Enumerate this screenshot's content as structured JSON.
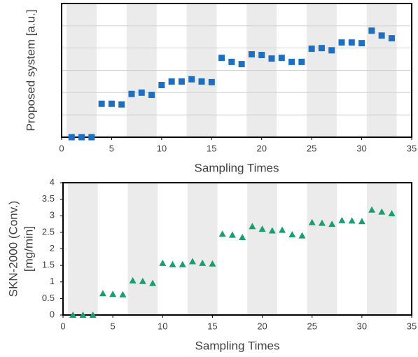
{
  "chart_data": [
    {
      "type": "scatter",
      "ylabel": "Proposed system [a.u.]",
      "xlabel": "Sampling Times",
      "x": [
        1,
        2,
        3,
        4,
        5,
        6,
        7,
        8,
        9,
        10,
        11,
        12,
        13,
        14,
        15,
        16,
        17,
        18,
        19,
        20,
        21,
        22,
        23,
        24,
        25,
        26,
        27,
        28,
        29,
        30,
        31,
        32,
        33
      ],
      "series": [
        {
          "color": "#1f6fc0",
          "marker": "square",
          "values": [
            0,
            0,
            0,
            1.5,
            1.5,
            1.47,
            1.94,
            2,
            1.9,
            2.34,
            2.5,
            2.5,
            2.6,
            2.5,
            2.47,
            3.56,
            3.38,
            3.28,
            3.72,
            3.69,
            3.53,
            3.56,
            3.38,
            3.38,
            3.97,
            4,
            3.9,
            4.25,
            4.25,
            4.22,
            4.78,
            4.56,
            4.44
          ]
        }
      ],
      "xlim": [
        0,
        35
      ],
      "xticks": [
        0,
        5,
        10,
        15,
        20,
        25,
        30,
        35
      ],
      "ylim": [
        0,
        6
      ],
      "grid_lines": [
        1,
        2,
        3,
        4,
        5
      ],
      "shaded_ranges": [
        [
          0.5,
          3.5
        ],
        [
          6.5,
          9.5
        ],
        [
          12.5,
          15.5
        ],
        [
          18.5,
          21.5
        ],
        [
          24.5,
          27.5
        ],
        [
          30.5,
          33.5
        ]
      ]
    },
    {
      "type": "scatter",
      "ylabel": [
        "SKN-2000 (Conv.)",
        "[mg/min]"
      ],
      "xlabel": "Sampling Times",
      "x": [
        1,
        2,
        3,
        4,
        5,
        6,
        7,
        8,
        9,
        10,
        11,
        12,
        13,
        14,
        15,
        16,
        17,
        18,
        19,
        20,
        21,
        22,
        23,
        24,
        25,
        26,
        27,
        28,
        29,
        30,
        31,
        32,
        33
      ],
      "series": [
        {
          "color": "#1a9e6e",
          "marker": "triangle",
          "values": [
            0,
            0,
            0,
            0.65,
            0.63,
            0.62,
            1.04,
            1.02,
            0.96,
            1.57,
            1.53,
            1.53,
            1.62,
            1.57,
            1.55,
            2.45,
            2.42,
            2.35,
            2.68,
            2.6,
            2.55,
            2.57,
            2.43,
            2.4,
            2.8,
            2.78,
            2.75,
            2.86,
            2.85,
            2.83,
            3.18,
            3.12,
            3.07
          ]
        }
      ],
      "xlim": [
        0,
        35
      ],
      "xticks": [
        0,
        5,
        10,
        15,
        20,
        25,
        30,
        35
      ],
      "ylim": [
        0,
        4
      ],
      "yticks": [
        0,
        0.5,
        1,
        1.5,
        2,
        2.5,
        3,
        3.5,
        4
      ],
      "shaded_ranges": [
        [
          0.5,
          3.5
        ],
        [
          6.5,
          9.5
        ],
        [
          12.5,
          15.5
        ],
        [
          18.5,
          21.5
        ],
        [
          24.5,
          27.5
        ],
        [
          30.5,
          33.5
        ]
      ]
    }
  ]
}
